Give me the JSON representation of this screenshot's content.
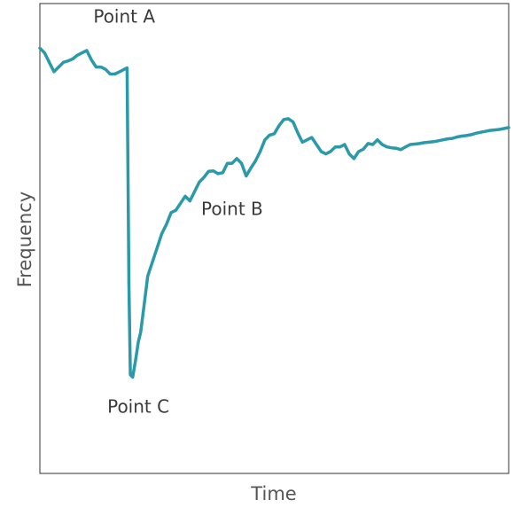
{
  "chart_data": {
    "type": "line",
    "title": "",
    "xlabel": "Time",
    "ylabel": "Frequency",
    "xlim": [
      0,
      100
    ],
    "ylim": [
      0,
      100
    ],
    "grid": false,
    "legend": "none",
    "color": "#2a9aa8",
    "series": [
      {
        "x": [
          0,
          1,
          2,
          3,
          4,
          5,
          6,
          7,
          8,
          9,
          10,
          11,
          12,
          13,
          14,
          15,
          16,
          17,
          18,
          18.6,
          19,
          19.3,
          19.8,
          20.4,
          21,
          21.5,
          22,
          23,
          24,
          25,
          26,
          27,
          28,
          29,
          30,
          31,
          32,
          33,
          34,
          35,
          36,
          37,
          38,
          39,
          40,
          41,
          42,
          43,
          44,
          45,
          46,
          47,
          48,
          49,
          50,
          51,
          52,
          53,
          54,
          55,
          56,
          57,
          58,
          59,
          60,
          61,
          62,
          63,
          64,
          65,
          66,
          67,
          68,
          69,
          70,
          71,
          72,
          73,
          74,
          75,
          76,
          77,
          78,
          79,
          80,
          81,
          82,
          83,
          84,
          85,
          86,
          87,
          88,
          89,
          90,
          91,
          92,
          93,
          94,
          95,
          96,
          97,
          98,
          99,
          100
        ],
        "values": [
          90.5,
          89.5,
          87.5,
          85.5,
          86.5,
          87.5,
          87.8,
          88.2,
          89,
          89.5,
          90,
          88,
          86.5,
          86.5,
          86,
          85,
          85,
          85.5,
          86,
          86.3,
          40,
          21,
          20.5,
          24,
          28,
          30,
          34,
          42,
          45,
          48,
          51,
          53,
          55.5,
          56,
          57.5,
          59,
          58,
          60,
          62,
          63,
          64.3,
          64.4,
          63.8,
          64,
          66,
          66,
          67,
          66,
          63.3,
          65,
          66.5,
          68.5,
          71,
          72,
          72.3,
          74,
          75.3,
          75.5,
          74.8,
          72.5,
          70.5,
          71,
          71.5,
          70,
          68.5,
          68,
          68.5,
          69.5,
          69.5,
          70,
          68,
          67,
          68.5,
          69,
          70.2,
          70,
          71,
          70,
          69.5,
          69.3,
          69.2,
          68.9,
          69.5,
          70,
          70.1,
          70.2,
          70.4,
          70.5,
          70.6,
          70.8,
          71,
          71.2,
          71.3,
          71.6,
          71.8,
          71.9,
          72.1,
          72.4,
          72.6,
          72.8,
          73,
          73.1,
          73.2,
          73.4,
          73.6
        ]
      }
    ],
    "annotations": [
      {
        "text": "Point A",
        "x": 18,
        "y": 97
      },
      {
        "text": "Point B",
        "x": 41,
        "y": 56
      },
      {
        "text": "Point C",
        "x": 21,
        "y": 14
      }
    ]
  }
}
